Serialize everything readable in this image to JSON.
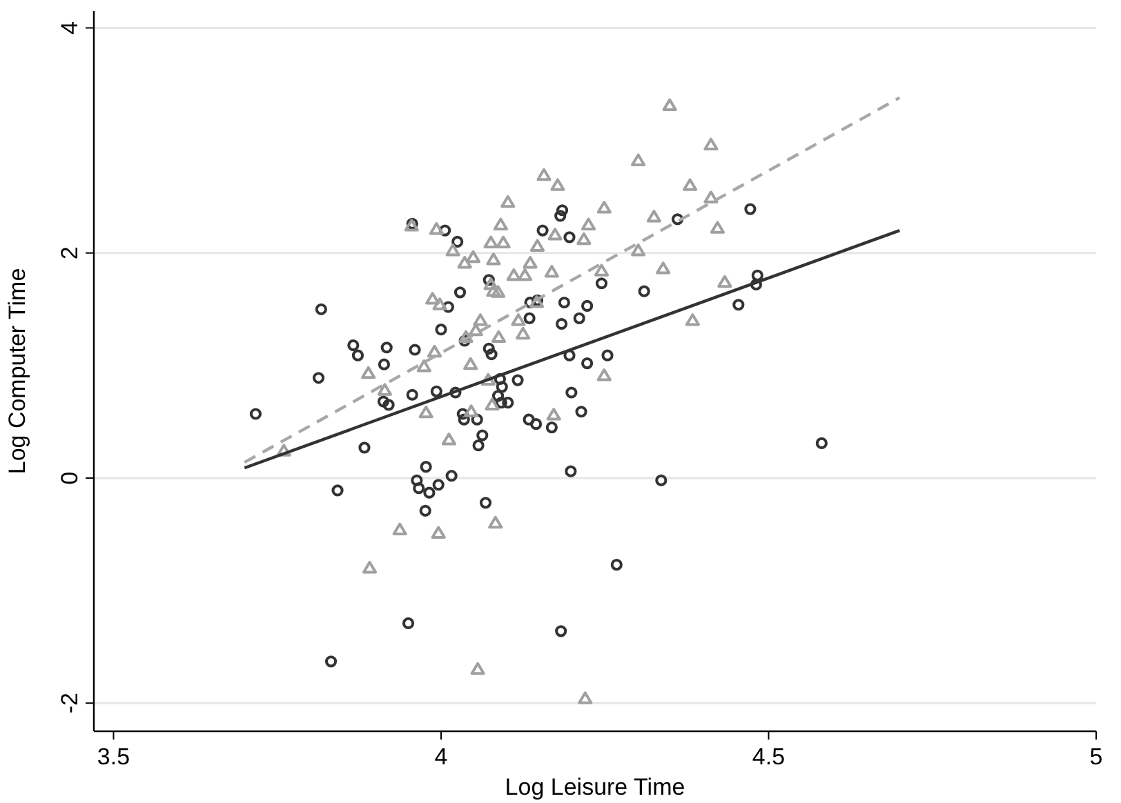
{
  "chart_data": {
    "type": "scatter",
    "xlabel": "Log Leisure Time",
    "ylabel": "Log Computer Time",
    "xlim": [
      3.47,
      5.0
    ],
    "ylim": [
      -2.25,
      4.15
    ],
    "xticks": [
      3.5,
      4,
      4.5,
      5
    ],
    "yticks": [
      -2,
      0,
      2,
      4
    ],
    "grid": "y",
    "series": [
      {
        "marker": "circle",
        "color": "#333333",
        "x": [
          3.956,
          4.006,
          4.025,
          4.155,
          4.073,
          4.029,
          4.011,
          3.817,
          4.136,
          4.147,
          4.135,
          4.0,
          3.866,
          3.917,
          3.96,
          4.036,
          4.073,
          4.077,
          3.873,
          4.185,
          4.182,
          4.196,
          4.361,
          4.472,
          4.245,
          4.31,
          4.188,
          4.223,
          4.211,
          4.184,
          4.483,
          4.481,
          4.454,
          4.196,
          4.254,
          4.223,
          3.913,
          3.813,
          3.717,
          3.912,
          3.92,
          3.956,
          3.993,
          4.022,
          4.09,
          4.093,
          4.117,
          4.087,
          4.092,
          4.102,
          4.033,
          4.035,
          4.055,
          4.134,
          4.145,
          4.063,
          4.057,
          3.883,
          3.977,
          3.963,
          3.966,
          3.982,
          3.996,
          4.016,
          3.842,
          3.976,
          4.068,
          4.199,
          4.214,
          4.169,
          4.198,
          4.336,
          4.581,
          4.268,
          3.832,
          3.95,
          4.183
        ],
        "values": [
          2.26,
          2.2,
          2.1,
          2.2,
          1.76,
          1.65,
          1.52,
          1.5,
          1.56,
          1.58,
          1.42,
          1.32,
          1.18,
          1.16,
          1.14,
          1.22,
          1.15,
          1.1,
          1.09,
          2.38,
          2.33,
          2.14,
          2.3,
          2.39,
          1.73,
          1.66,
          1.56,
          1.53,
          1.42,
          1.37,
          1.8,
          1.72,
          1.54,
          1.09,
          1.09,
          1.02,
          1.01,
          0.89,
          0.57,
          0.68,
          0.65,
          0.74,
          0.77,
          0.76,
          0.88,
          0.81,
          0.87,
          0.73,
          0.67,
          0.67,
          0.57,
          0.52,
          0.52,
          0.52,
          0.48,
          0.38,
          0.29,
          0.27,
          0.1,
          -0.02,
          -0.09,
          -0.13,
          -0.06,
          0.02,
          -0.11,
          -0.29,
          -0.22,
          0.76,
          0.59,
          0.45,
          0.06,
          -0.02,
          0.31,
          -0.77,
          -1.63,
          -1.29,
          -1.36
        ]
      },
      {
        "marker": "triangle",
        "color": "#a0a0a0",
        "x": [
          4.157,
          4.102,
          4.091,
          3.993,
          3.955,
          4.076,
          4.095,
          4.147,
          4.018,
          4.049,
          4.036,
          4.08,
          4.136,
          4.111,
          4.128,
          4.076,
          4.08,
          4.087,
          3.987,
          3.998,
          4.06,
          4.118,
          4.053,
          4.125,
          4.088,
          4.038,
          3.99,
          4.349,
          4.412,
          4.301,
          4.178,
          4.38,
          4.412,
          4.249,
          4.325,
          4.225,
          4.174,
          4.218,
          4.422,
          4.301,
          4.169,
          4.245,
          4.339,
          4.433,
          4.146,
          4.384,
          3.974,
          4.045,
          3.889,
          3.914,
          4.072,
          4.078,
          4.046,
          3.977,
          4.012,
          3.76,
          4.249,
          4.172,
          3.937,
          3.996,
          4.083,
          3.891,
          4.056,
          4.22
        ],
        "values": [
          2.69,
          2.45,
          2.25,
          2.21,
          2.24,
          2.09,
          2.09,
          2.06,
          2.02,
          1.96,
          1.91,
          1.94,
          1.91,
          1.8,
          1.8,
          1.72,
          1.66,
          1.65,
          1.59,
          1.54,
          1.4,
          1.4,
          1.31,
          1.28,
          1.25,
          1.25,
          1.12,
          3.31,
          2.96,
          2.82,
          2.6,
          2.6,
          2.49,
          2.4,
          2.32,
          2.25,
          2.16,
          2.12,
          2.22,
          2.02,
          1.83,
          1.84,
          1.86,
          1.74,
          1.56,
          1.4,
          0.99,
          1.01,
          0.93,
          0.78,
          0.87,
          0.65,
          0.59,
          0.58,
          0.34,
          0.24,
          0.91,
          0.56,
          -0.46,
          -0.49,
          -0.4,
          -0.8,
          -1.7,
          -1.96
        ]
      },
      {
        "type": "line",
        "marker": "none",
        "line_style": "solid",
        "color": "#333333",
        "x": [
          3.7,
          4.7
        ],
        "values": [
          0.09,
          2.2
        ]
      },
      {
        "type": "line",
        "marker": "none",
        "line_style": "dashed",
        "color": "#a8a8a8",
        "x": [
          3.7,
          4.7
        ],
        "values": [
          0.14,
          3.38
        ]
      }
    ]
  }
}
